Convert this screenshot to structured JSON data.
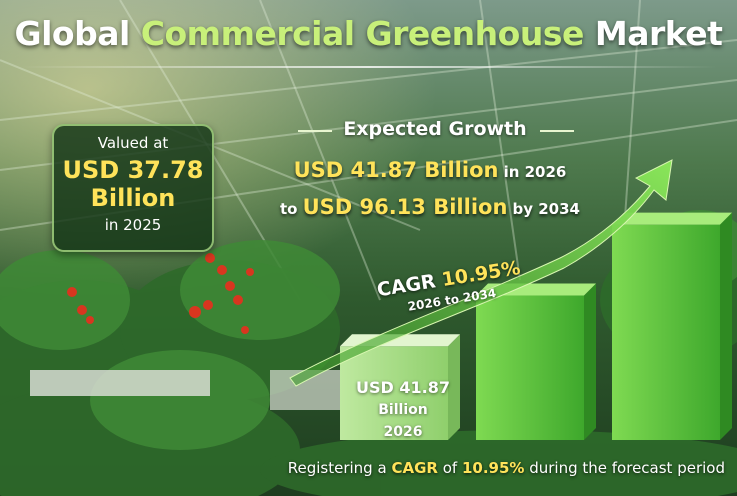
{
  "title": {
    "part1": "Global",
    "highlight": "Commercial Greenhouse",
    "part2": "Market"
  },
  "valued": {
    "line1": "Valued at",
    "line2": "USD 37.78",
    "line3": "Billion",
    "line4": "in 2025"
  },
  "expected": {
    "heading": "Expected Growth",
    "value1": "USD 41.87 Billion",
    "year1": "in 2026",
    "prefix2": "to",
    "value2": "USD 96.13 Billion",
    "year2": "by 2034"
  },
  "cagr": {
    "label": "CAGR",
    "value": "10.95%",
    "period": "2026 to 2034"
  },
  "first_bar_label": {
    "line1": "USD 41.87",
    "line2": "Billion",
    "line3": "2026"
  },
  "footer": {
    "part1": "Registering a",
    "cagr": "CAGR",
    "part2": "of",
    "value": "10.95%",
    "part3": "during the forecast period"
  },
  "colors": {
    "accent_yellow": "#ffe35a",
    "title_green": "#c8f07a",
    "bar_green": "#5fc440",
    "arrow_green": "#6fd24a"
  },
  "chart_data": {
    "type": "bar",
    "categories": [
      "2026",
      "",
      "2034"
    ],
    "values": [
      41.87,
      64.5,
      96.13
    ],
    "ylim": [
      0,
      100
    ],
    "xlabel": "",
    "ylabel": ""
  }
}
